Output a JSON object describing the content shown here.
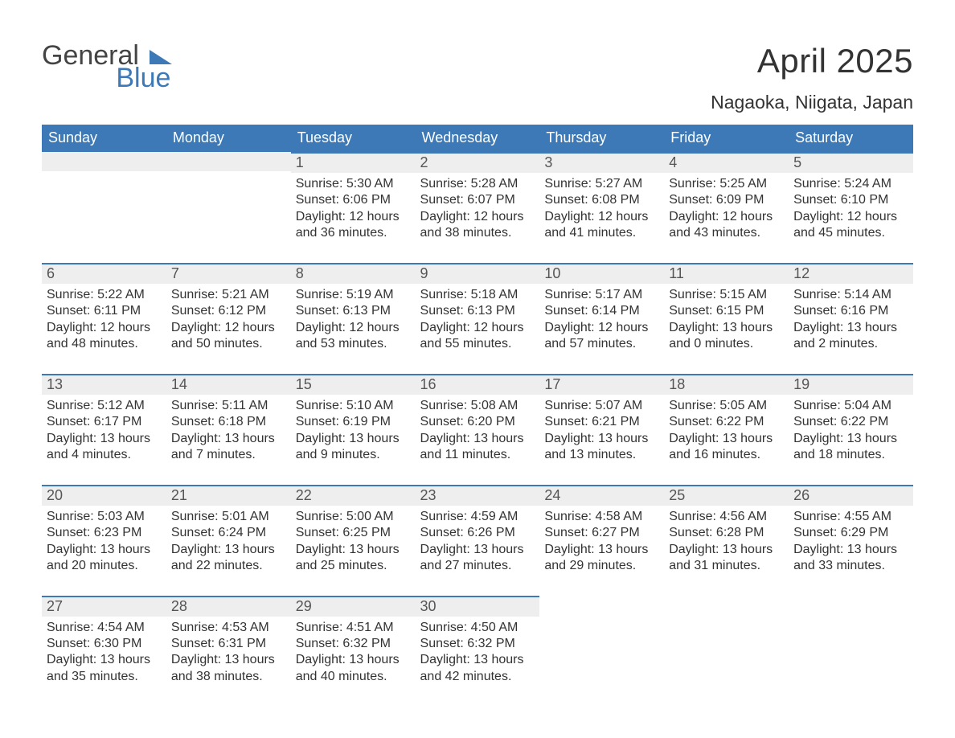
{
  "logo": {
    "word1": "General",
    "word2": "Blue",
    "tri_color": "#3d79b7",
    "text_color_1": "#444444",
    "text_color_2": "#3d79b7"
  },
  "title": "April 2025",
  "location": "Nagaoka, Niigata, Japan",
  "colors": {
    "header_bg": "#3d79b7",
    "header_text": "#ffffff",
    "daynum_bg": "#eeeeee",
    "daynum_text": "#555555",
    "body_text": "#333333",
    "rule": "#3d79b7",
    "page_bg": "#ffffff"
  },
  "typography": {
    "month_title_fontsize": 42,
    "location_fontsize": 23,
    "weekday_fontsize": 18,
    "daynum_fontsize": 18,
    "body_fontsize": 16,
    "font_family": "Segoe UI"
  },
  "day_headers": [
    "Sunday",
    "Monday",
    "Tuesday",
    "Wednesday",
    "Thursday",
    "Friday",
    "Saturday"
  ],
  "labels": {
    "sunrise": "Sunrise:",
    "sunset": "Sunset:",
    "daylight": "Daylight:"
  },
  "weeks": [
    [
      null,
      null,
      {
        "n": "1",
        "sunrise": "5:30 AM",
        "sunset": "6:06 PM",
        "daylight": "12 hours and 36 minutes."
      },
      {
        "n": "2",
        "sunrise": "5:28 AM",
        "sunset": "6:07 PM",
        "daylight": "12 hours and 38 minutes."
      },
      {
        "n": "3",
        "sunrise": "5:27 AM",
        "sunset": "6:08 PM",
        "daylight": "12 hours and 41 minutes."
      },
      {
        "n": "4",
        "sunrise": "5:25 AM",
        "sunset": "6:09 PM",
        "daylight": "12 hours and 43 minutes."
      },
      {
        "n": "5",
        "sunrise": "5:24 AM",
        "sunset": "6:10 PM",
        "daylight": "12 hours and 45 minutes."
      }
    ],
    [
      {
        "n": "6",
        "sunrise": "5:22 AM",
        "sunset": "6:11 PM",
        "daylight": "12 hours and 48 minutes."
      },
      {
        "n": "7",
        "sunrise": "5:21 AM",
        "sunset": "6:12 PM",
        "daylight": "12 hours and 50 minutes."
      },
      {
        "n": "8",
        "sunrise": "5:19 AM",
        "sunset": "6:13 PM",
        "daylight": "12 hours and 53 minutes."
      },
      {
        "n": "9",
        "sunrise": "5:18 AM",
        "sunset": "6:13 PM",
        "daylight": "12 hours and 55 minutes."
      },
      {
        "n": "10",
        "sunrise": "5:17 AM",
        "sunset": "6:14 PM",
        "daylight": "12 hours and 57 minutes."
      },
      {
        "n": "11",
        "sunrise": "5:15 AM",
        "sunset": "6:15 PM",
        "daylight": "13 hours and 0 minutes."
      },
      {
        "n": "12",
        "sunrise": "5:14 AM",
        "sunset": "6:16 PM",
        "daylight": "13 hours and 2 minutes."
      }
    ],
    [
      {
        "n": "13",
        "sunrise": "5:12 AM",
        "sunset": "6:17 PM",
        "daylight": "13 hours and 4 minutes."
      },
      {
        "n": "14",
        "sunrise": "5:11 AM",
        "sunset": "6:18 PM",
        "daylight": "13 hours and 7 minutes."
      },
      {
        "n": "15",
        "sunrise": "5:10 AM",
        "sunset": "6:19 PM",
        "daylight": "13 hours and 9 minutes."
      },
      {
        "n": "16",
        "sunrise": "5:08 AM",
        "sunset": "6:20 PM",
        "daylight": "13 hours and 11 minutes."
      },
      {
        "n": "17",
        "sunrise": "5:07 AM",
        "sunset": "6:21 PM",
        "daylight": "13 hours and 13 minutes."
      },
      {
        "n": "18",
        "sunrise": "5:05 AM",
        "sunset": "6:22 PM",
        "daylight": "13 hours and 16 minutes."
      },
      {
        "n": "19",
        "sunrise": "5:04 AM",
        "sunset": "6:22 PM",
        "daylight": "13 hours and 18 minutes."
      }
    ],
    [
      {
        "n": "20",
        "sunrise": "5:03 AM",
        "sunset": "6:23 PM",
        "daylight": "13 hours and 20 minutes."
      },
      {
        "n": "21",
        "sunrise": "5:01 AM",
        "sunset": "6:24 PM",
        "daylight": "13 hours and 22 minutes."
      },
      {
        "n": "22",
        "sunrise": "5:00 AM",
        "sunset": "6:25 PM",
        "daylight": "13 hours and 25 minutes."
      },
      {
        "n": "23",
        "sunrise": "4:59 AM",
        "sunset": "6:26 PM",
        "daylight": "13 hours and 27 minutes."
      },
      {
        "n": "24",
        "sunrise": "4:58 AM",
        "sunset": "6:27 PM",
        "daylight": "13 hours and 29 minutes."
      },
      {
        "n": "25",
        "sunrise": "4:56 AM",
        "sunset": "6:28 PM",
        "daylight": "13 hours and 31 minutes."
      },
      {
        "n": "26",
        "sunrise": "4:55 AM",
        "sunset": "6:29 PM",
        "daylight": "13 hours and 33 minutes."
      }
    ],
    [
      {
        "n": "27",
        "sunrise": "4:54 AM",
        "sunset": "6:30 PM",
        "daylight": "13 hours and 35 minutes."
      },
      {
        "n": "28",
        "sunrise": "4:53 AM",
        "sunset": "6:31 PM",
        "daylight": "13 hours and 38 minutes."
      },
      {
        "n": "29",
        "sunrise": "4:51 AM",
        "sunset": "6:32 PM",
        "daylight": "13 hours and 40 minutes."
      },
      {
        "n": "30",
        "sunrise": "4:50 AM",
        "sunset": "6:32 PM",
        "daylight": "13 hours and 42 minutes."
      },
      null,
      null,
      null
    ]
  ]
}
